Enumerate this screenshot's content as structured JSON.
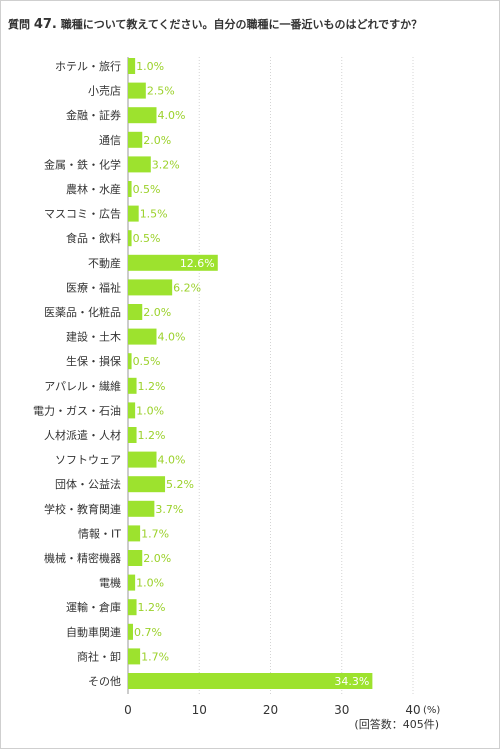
{
  "header": {
    "question_prefix": "質問 ",
    "question_number": "47.",
    "question_text": " 職種について教えてください。自分の職種に一番近いものはどれですか？"
  },
  "chart_data": {
    "type": "bar",
    "orientation": "horizontal",
    "title": "",
    "xlabel": "",
    "ylabel": "",
    "unit": "(%)",
    "note": "(回答数：405件)",
    "xlim": [
      0,
      40
    ],
    "x_ticks": [
      0,
      10,
      20,
      30,
      40
    ],
    "grid": true,
    "bar_color": "#9de22e",
    "label_color": "#9bd12a",
    "categories": [
      "ホテル・旅行",
      "小売店",
      "金融・証券",
      "通信",
      "金属・鉄・化学",
      "農林・水産",
      "マスコミ・広告",
      "食品・飲料",
      "不動産",
      "医療・福祉",
      "医薬品・化粧品",
      "建設・土木",
      "生保・損保",
      "アパレル・繊維",
      "電力・ガス・石油",
      "人材派遣・人材",
      "ソフトウェア",
      "団体・公益法",
      "学校・教育関連",
      "情報・IT",
      "機械・精密機器",
      "電機",
      "運輸・倉庫",
      "自動車関連",
      "商社・卸",
      "その他"
    ],
    "values": [
      1.0,
      2.5,
      4.0,
      2.0,
      3.2,
      0.5,
      1.5,
      0.5,
      12.6,
      6.2,
      2.0,
      4.0,
      0.5,
      1.2,
      1.0,
      1.2,
      4.0,
      5.2,
      3.7,
      1.7,
      2.0,
      1.0,
      1.2,
      0.7,
      1.7,
      34.3
    ],
    "value_labels": [
      "1.0%",
      "2.5%",
      "4.0%",
      "2.0%",
      "3.2%",
      "0.5%",
      "1.5%",
      "0.5%",
      "12.6%",
      "6.2%",
      "2.0%",
      "4.0%",
      "0.5%",
      "1.2%",
      "1.0%",
      "1.2%",
      "4.0%",
      "5.2%",
      "3.7%",
      "1.7%",
      "2.0%",
      "1.0%",
      "1.2%",
      "0.7%",
      "1.7%",
      "34.3%"
    ]
  }
}
